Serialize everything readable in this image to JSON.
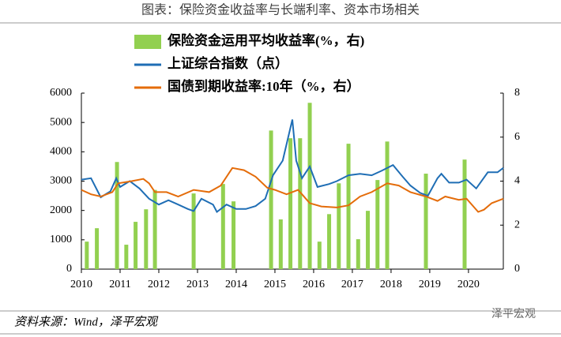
{
  "chart_data": {
    "type": "combo",
    "title": "图表：保险资金收益率与长端利率、资本市场相关",
    "source": "资料来源：Wind，泽平宏观",
    "watermark": "泽平宏观",
    "xlim": [
      2010,
      2020.9
    ],
    "xticks": [
      2010,
      2011,
      2012,
      2013,
      2014,
      2015,
      2016,
      2017,
      2018,
      2019,
      2020
    ],
    "ylim": [
      0,
      6000
    ],
    "yticks": [
      0,
      1000,
      2000,
      3000,
      4000,
      5000,
      6000
    ],
    "y2lim": [
      0,
      8
    ],
    "y2ticks": [
      0,
      2,
      4,
      6,
      8
    ],
    "series": [
      {
        "name": "保险资金运用平均收益率(%，右)",
        "type": "bar",
        "axis": "y2",
        "color": "#92d050",
        "x": [
          2010.14,
          2010.4,
          2010.92,
          2011.16,
          2011.4,
          2011.67,
          2011.9,
          2012.9,
          2013.66,
          2013.93,
          2014.9,
          2015.15,
          2015.4,
          2015.65,
          2015.9,
          2016.15,
          2016.4,
          2016.65,
          2016.9,
          2017.15,
          2017.4,
          2017.65,
          2017.9,
          2018.9,
          2019.9
        ],
        "values": [
          1.25,
          1.86,
          4.87,
          1.11,
          2.15,
          2.72,
          3.6,
          3.44,
          3.87,
          3.08,
          6.3,
          2.26,
          5.95,
          5.95,
          7.56,
          1.25,
          2.5,
          3.9,
          5.7,
          1.36,
          2.65,
          4.05,
          5.8,
          4.34,
          4.98
        ]
      },
      {
        "name": "上证综合指数（点）",
        "type": "line",
        "color": "#1f6eb5",
        "x": [
          2010.0,
          2010.25,
          2010.5,
          2010.75,
          2010.9,
          2011.0,
          2011.25,
          2011.5,
          2011.75,
          2012.0,
          2012.25,
          2012.5,
          2012.75,
          2012.9,
          2013.1,
          2013.4,
          2013.5,
          2013.75,
          2014.0,
          2014.25,
          2014.5,
          2014.75,
          2014.95,
          2015.2,
          2015.45,
          2015.55,
          2015.7,
          2015.9,
          2016.1,
          2016.4,
          2016.6,
          2016.9,
          2017.2,
          2017.5,
          2017.75,
          2018.05,
          2018.3,
          2018.5,
          2018.75,
          2018.95,
          2019.2,
          2019.3,
          2019.5,
          2019.75,
          2019.95,
          2020.2,
          2020.5,
          2020.75,
          2020.9
        ],
        "values": [
          3050,
          3100,
          2450,
          2650,
          3100,
          2800,
          3000,
          2750,
          2400,
          2200,
          2350,
          2200,
          2050,
          1980,
          2400,
          2200,
          1950,
          2200,
          2050,
          2050,
          2150,
          2400,
          3200,
          3700,
          5100,
          3700,
          3100,
          3500,
          2800,
          2900,
          3000,
          3200,
          3250,
          3200,
          3350,
          3550,
          3150,
          2850,
          2600,
          2500,
          3100,
          3250,
          2950,
          2950,
          3050,
          2750,
          3300,
          3300,
          3450
        ]
      },
      {
        "name": "国债到期收益率:10年（%，右）",
        "type": "line",
        "axis": "y2",
        "color": "#e46c0a",
        "x": [
          2010.0,
          2010.25,
          2010.5,
          2010.8,
          2010.95,
          2011.3,
          2011.6,
          2011.75,
          2011.9,
          2012.2,
          2012.5,
          2012.9,
          2013.3,
          2013.6,
          2013.9,
          2014.2,
          2014.5,
          2014.8,
          2015.0,
          2015.3,
          2015.6,
          2015.9,
          2016.2,
          2016.6,
          2016.9,
          2017.2,
          2017.5,
          2017.9,
          2018.2,
          2018.5,
          2018.9,
          2019.2,
          2019.4,
          2019.75,
          2019.95,
          2020.25,
          2020.4,
          2020.6,
          2020.9
        ],
        "values": [
          3.6,
          3.4,
          3.3,
          3.5,
          3.9,
          4.0,
          4.1,
          3.9,
          3.5,
          3.5,
          3.3,
          3.6,
          3.5,
          3.8,
          4.6,
          4.5,
          4.2,
          3.7,
          3.6,
          3.4,
          3.6,
          3.0,
          2.85,
          2.8,
          2.9,
          3.3,
          3.5,
          3.9,
          3.8,
          3.5,
          3.3,
          3.1,
          3.3,
          3.15,
          3.2,
          2.6,
          2.7,
          3.0,
          3.2
        ]
      }
    ]
  }
}
